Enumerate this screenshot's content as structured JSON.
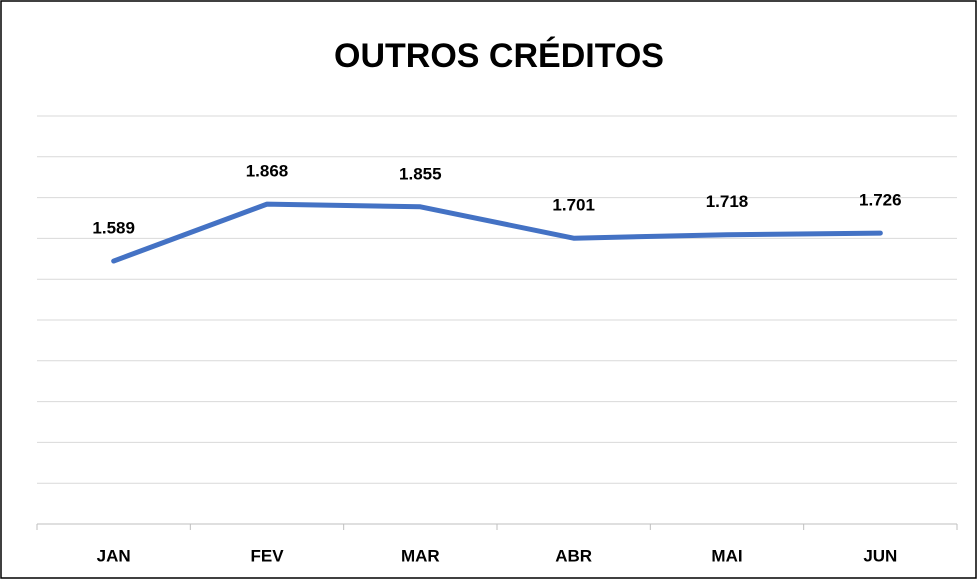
{
  "chart_data": {
    "type": "line",
    "title": "OUTROS CRÉDITOS",
    "categories": [
      "JAN",
      "FEV",
      "MAR",
      "ABR",
      "MAI",
      "JUN"
    ],
    "series": [
      {
        "name": "OUTROS CRÉDITOS",
        "color": "#4472c4",
        "values": [
          1589,
          1868,
          1855,
          1701,
          1718,
          1726
        ],
        "value_labels": [
          "1.589",
          "1.868",
          "1.855",
          "1.701",
          "1.718",
          "1.726"
        ]
      }
    ],
    "ylim": [
      300,
      2300
    ],
    "yticks": [
      300,
      500,
      700,
      900,
      1100,
      1300,
      1500,
      1700,
      1900,
      2100,
      2300
    ],
    "grid": true
  }
}
